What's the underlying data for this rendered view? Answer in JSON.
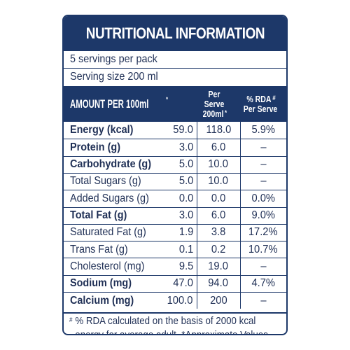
{
  "title": "NUTRITIONAL INFORMATION",
  "servings_per_pack": "5 servings  per pack",
  "serving_size": "Serving size 200 ml",
  "header": {
    "amount_label": "AMOUNT PER 100ml",
    "amount_sup": "*",
    "per_serve_line1": "Per Serve",
    "per_serve_line2": "200ml",
    "per_serve_sup": "*",
    "rda_line1": "% RDA",
    "rda_sup": "#",
    "rda_line2": "Per Serve"
  },
  "rows": [
    {
      "name": "Energy (kcal)",
      "per100": "59.0",
      "per_serve": "118.0",
      "rda": "5.9%",
      "bold": true
    },
    {
      "name": "Protein (g)",
      "per100": "3.0",
      "per_serve": "6.0",
      "rda": "–",
      "bold": true
    },
    {
      "name": "Carbohydrate (g)",
      "per100": "5.0",
      "per_serve": "10.0",
      "rda": "–",
      "bold": true
    },
    {
      "name": "Total Sugars (g)",
      "per100": "5.0",
      "per_serve": "10.0",
      "rda": "–",
      "bold": false
    },
    {
      "name": "Added Sugars (g)",
      "per100": "0.0",
      "per_serve": "0.0",
      "rda": "0.0%",
      "bold": false
    },
    {
      "name": "Total Fat (g)",
      "per100": "3.0",
      "per_serve": "6.0",
      "rda": "9.0%",
      "bold": true
    },
    {
      "name": "Saturated Fat (g)",
      "per100": "1.9",
      "per_serve": "3.8",
      "rda": "17.2%",
      "bold": false
    },
    {
      "name": "Trans Fat (g)",
      "per100": "0.1",
      "per_serve": "0.2",
      "rda": "10.7%",
      "bold": false
    },
    {
      "name": "Cholesterol (mg)",
      "per100": "9.5",
      "per_serve": "19.0",
      "rda": "–",
      "bold": false
    },
    {
      "name": "Sodium (mg)",
      "per100": "47.0",
      "per_serve": "94.0",
      "rda": "4.7%",
      "bold": true
    },
    {
      "name": "Calcium (mg)",
      "per100": "100.0",
      "per_serve": "200",
      "rda": "–",
      "bold": true
    }
  ],
  "footnote": {
    "mark": "#",
    "line1": "% RDA calculated on the basis of 2000 kcal",
    "line2": "energy for average adult. *Approximate Values."
  },
  "colors": {
    "navy": "#1d3869",
    "text": "#1f2f55"
  }
}
